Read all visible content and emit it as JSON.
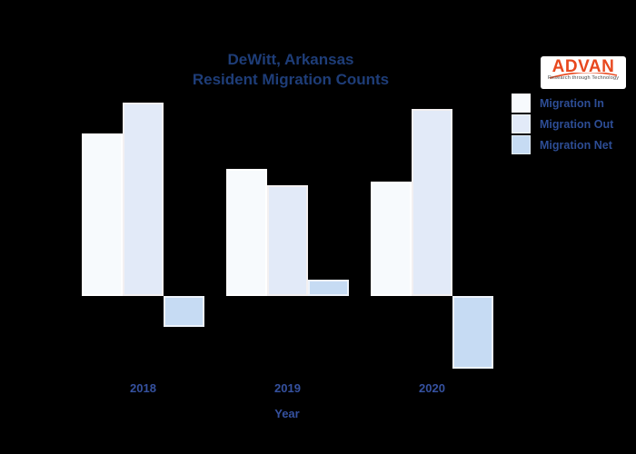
{
  "page": {
    "background": "#000000"
  },
  "header": {
    "title_line1": "DeWitt, Arkansas",
    "title_line2": "Resident Migration Counts",
    "title_color": "#1e3d78"
  },
  "logo": {
    "text": "ADVAN",
    "tagline": "Research through Technology",
    "text_color": "#e8481e",
    "background": "#ffffff"
  },
  "legend": {
    "position": "top-right",
    "text_color": "#2d4d95",
    "items": [
      {
        "label": "Migration In",
        "color": "#f7fafd"
      },
      {
        "label": "Migration Out",
        "color": "#e2eaf8"
      },
      {
        "label": "Migration Net",
        "color": "#c6dbf3"
      }
    ]
  },
  "chart_data": {
    "type": "bar",
    "title": "DeWitt, Arkansas Resident Migration Counts",
    "categories": [
      "2018",
      "2019",
      "2020"
    ],
    "series": [
      {
        "name": "Migration In",
        "color": "#f7fafd",
        "border": "#ffffff",
        "values": [
          1790,
          1400,
          1260
        ]
      },
      {
        "name": "Migration Out",
        "color": "#e2eaf8",
        "border": "#f3f0f1",
        "values": [
          2130,
          1220,
          2060
        ]
      },
      {
        "name": "Migration Net",
        "color": "#c6dbf3",
        "border": "#edf3fb",
        "values": [
          -340,
          180,
          -800
        ]
      }
    ],
    "xlabel": "Year",
    "ylabel": "",
    "ylim": [
      -900,
      2260
    ],
    "grid": false,
    "legend_position": "top-right",
    "tick_color": "#35519f",
    "note": "No y-axis tick labels are visible in the image; values estimated from bar heights (Net = In - Out)."
  }
}
